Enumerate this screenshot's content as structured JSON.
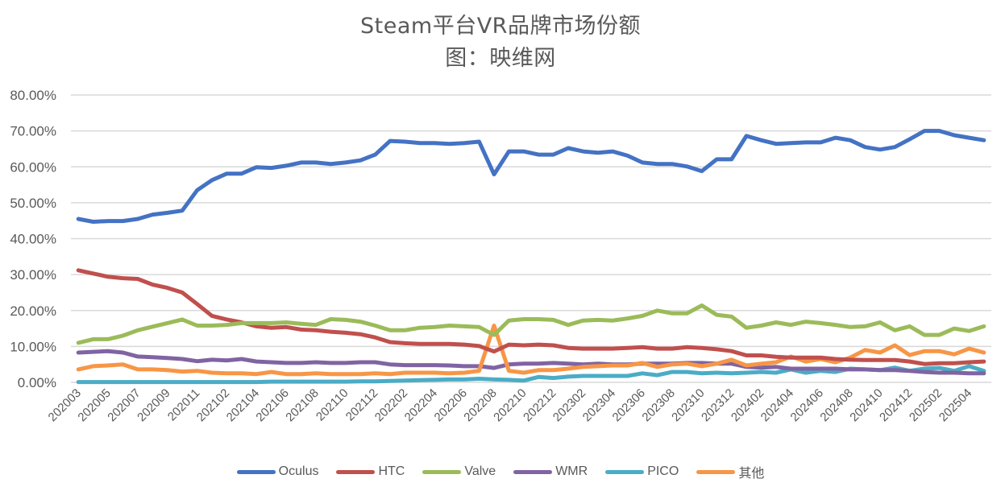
{
  "chart_data": {
    "type": "line",
    "title": "Steam平台VR品牌市场份额",
    "subtitle": "图：映维网",
    "xlabel": "",
    "ylabel": "",
    "ylim": [
      0,
      80
    ],
    "y_ticks": [
      "0.00%",
      "10.00%",
      "20.00%",
      "30.00%",
      "40.00%",
      "50.00%",
      "60.00%",
      "70.00%",
      "80.00%"
    ],
    "y_tick_values": [
      0,
      10,
      20,
      30,
      40,
      50,
      60,
      70,
      80
    ],
    "grid": true,
    "legend_position": "bottom",
    "x_tick_labels": [
      "202003",
      "202005",
      "202007",
      "202009",
      "202011",
      "202102",
      "202104",
      "202106",
      "202108",
      "202110",
      "202112",
      "202202",
      "202204",
      "202206",
      "202208",
      "202210",
      "202212",
      "202302",
      "202304",
      "202306",
      "202308",
      "202310",
      "202312",
      "202402",
      "202404",
      "202406",
      "202408",
      "202410",
      "202412",
      "202502",
      "202504"
    ],
    "x": [
      "202003",
      "202004",
      "202005",
      "202006",
      "202007",
      "202008",
      "202009",
      "202010",
      "202011",
      "202101",
      "202102",
      "202103",
      "202104",
      "202105",
      "202106",
      "202107",
      "202108",
      "202109",
      "202110",
      "202111",
      "202112",
      "202201",
      "202202",
      "202203",
      "202204",
      "202205",
      "202206",
      "202207",
      "202208",
      "202209",
      "202210",
      "202211",
      "202212",
      "202301",
      "202302",
      "202303",
      "202304",
      "202305",
      "202306",
      "202307",
      "202308",
      "202309",
      "202310",
      "202311",
      "202312",
      "202401",
      "202402",
      "202403",
      "202404",
      "202405",
      "202406",
      "202407",
      "202408",
      "202409",
      "202410",
      "202411",
      "202412",
      "202501",
      "202502",
      "202503",
      "202504",
      "202505"
    ],
    "series": [
      {
        "name": "Oculus",
        "color": "#4472C4",
        "values": [
          45.5,
          44.7,
          44.9,
          44.9,
          45.5,
          46.7,
          47.2,
          47.8,
          53.5,
          56.3,
          58.1,
          58.1,
          59.9,
          59.7,
          60.3,
          61.2,
          61.2,
          60.8,
          61.2,
          61.8,
          63.4,
          67.2,
          67.0,
          66.6,
          66.6,
          66.4,
          66.6,
          67.0,
          57.9,
          64.3,
          64.3,
          63.4,
          63.4,
          65.2,
          64.3,
          63.9,
          64.3,
          63.1,
          61.2,
          60.8,
          60.8,
          60.1,
          58.8,
          62.1,
          62.1,
          68.6,
          67.4,
          66.4,
          66.6,
          66.8,
          66.8,
          68.1,
          67.4,
          65.5,
          64.8,
          65.5,
          67.7,
          70.0,
          70.0,
          68.8,
          68.1,
          67.4
        ]
      },
      {
        "name": "HTC",
        "color": "#C0504D",
        "values": [
          31.2,
          30.3,
          29.4,
          29.0,
          28.8,
          27.2,
          26.3,
          25.0,
          21.8,
          18.5,
          17.5,
          16.7,
          15.6,
          15.2,
          15.4,
          14.7,
          14.5,
          14.1,
          13.8,
          13.4,
          12.5,
          11.2,
          10.9,
          10.7,
          10.7,
          10.7,
          10.5,
          10.1,
          8.6,
          10.5,
          10.3,
          10.5,
          10.3,
          9.6,
          9.4,
          9.4,
          9.4,
          9.6,
          9.8,
          9.4,
          9.4,
          9.8,
          9.6,
          9.2,
          8.7,
          7.5,
          7.5,
          7.1,
          6.9,
          6.9,
          6.9,
          6.5,
          6.3,
          6.2,
          6.2,
          6.2,
          5.8,
          5.1,
          5.3,
          5.3,
          5.6,
          5.8
        ]
      },
      {
        "name": "Valve",
        "color": "#9BBB59",
        "values": [
          11.0,
          12.0,
          12.0,
          13.0,
          14.5,
          15.5,
          16.5,
          17.5,
          15.8,
          15.8,
          16.0,
          16.5,
          16.5,
          16.5,
          16.7,
          16.3,
          16.0,
          17.6,
          17.4,
          16.9,
          15.8,
          14.5,
          14.5,
          15.2,
          15.4,
          15.8,
          15.6,
          15.4,
          13.2,
          17.2,
          17.6,
          17.6,
          17.4,
          16.0,
          17.2,
          17.4,
          17.2,
          17.8,
          18.5,
          20.0,
          19.2,
          19.2,
          21.4,
          18.8,
          18.3,
          15.2,
          15.8,
          16.7,
          16.0,
          16.9,
          16.5,
          16.0,
          15.4,
          15.6,
          16.7,
          14.5,
          15.6,
          13.2,
          13.2,
          15.0,
          14.3,
          15.6
        ]
      },
      {
        "name": "WMR",
        "color": "#8064A2",
        "values": [
          8.3,
          8.5,
          8.7,
          8.3,
          7.2,
          7.0,
          6.8,
          6.5,
          5.9,
          6.3,
          6.1,
          6.5,
          5.8,
          5.6,
          5.4,
          5.4,
          5.6,
          5.4,
          5.4,
          5.6,
          5.6,
          5.0,
          4.8,
          4.8,
          4.8,
          4.7,
          4.5,
          4.5,
          4.0,
          5.0,
          5.2,
          5.2,
          5.4,
          5.2,
          5.0,
          5.2,
          5.0,
          5.0,
          5.2,
          5.2,
          5.2,
          5.4,
          5.4,
          5.2,
          5.2,
          4.3,
          4.1,
          4.3,
          3.8,
          3.8,
          3.8,
          3.8,
          3.6,
          3.6,
          3.4,
          3.4,
          3.2,
          2.9,
          2.7,
          2.7,
          2.5,
          2.5
        ]
      },
      {
        "name": "PICO",
        "color": "#4BACC6",
        "values": [
          0.1,
          0.1,
          0.1,
          0.1,
          0.1,
          0.1,
          0.1,
          0.1,
          0.1,
          0.1,
          0.1,
          0.1,
          0.1,
          0.2,
          0.2,
          0.2,
          0.2,
          0.2,
          0.2,
          0.3,
          0.3,
          0.4,
          0.5,
          0.6,
          0.7,
          0.8,
          0.8,
          1.0,
          0.8,
          0.7,
          0.5,
          1.5,
          1.2,
          1.6,
          1.8,
          1.8,
          1.8,
          1.8,
          2.5,
          2.0,
          2.9,
          2.9,
          2.5,
          2.7,
          2.5,
          2.7,
          2.9,
          2.7,
          3.6,
          2.7,
          3.2,
          2.9,
          3.8,
          3.6,
          3.4,
          4.1,
          3.2,
          3.8,
          4.0,
          3.2,
          4.5,
          3.2
        ]
      },
      {
        "name": "其他",
        "color": "#F79646",
        "values": [
          3.6,
          4.5,
          4.7,
          5.0,
          3.6,
          3.6,
          3.4,
          3.0,
          3.2,
          2.7,
          2.5,
          2.5,
          2.3,
          2.9,
          2.3,
          2.3,
          2.5,
          2.3,
          2.3,
          2.3,
          2.5,
          2.3,
          2.7,
          2.7,
          2.7,
          2.5,
          2.7,
          3.2,
          15.8,
          3.2,
          2.7,
          3.4,
          3.4,
          3.8,
          4.3,
          4.5,
          4.7,
          4.7,
          5.4,
          4.3,
          5.0,
          5.2,
          4.5,
          5.2,
          6.3,
          4.7,
          5.2,
          5.6,
          7.2,
          5.8,
          6.5,
          5.6,
          6.9,
          9.0,
          8.3,
          10.3,
          7.6,
          8.7,
          8.7,
          7.8,
          9.4,
          8.3
        ]
      }
    ]
  }
}
